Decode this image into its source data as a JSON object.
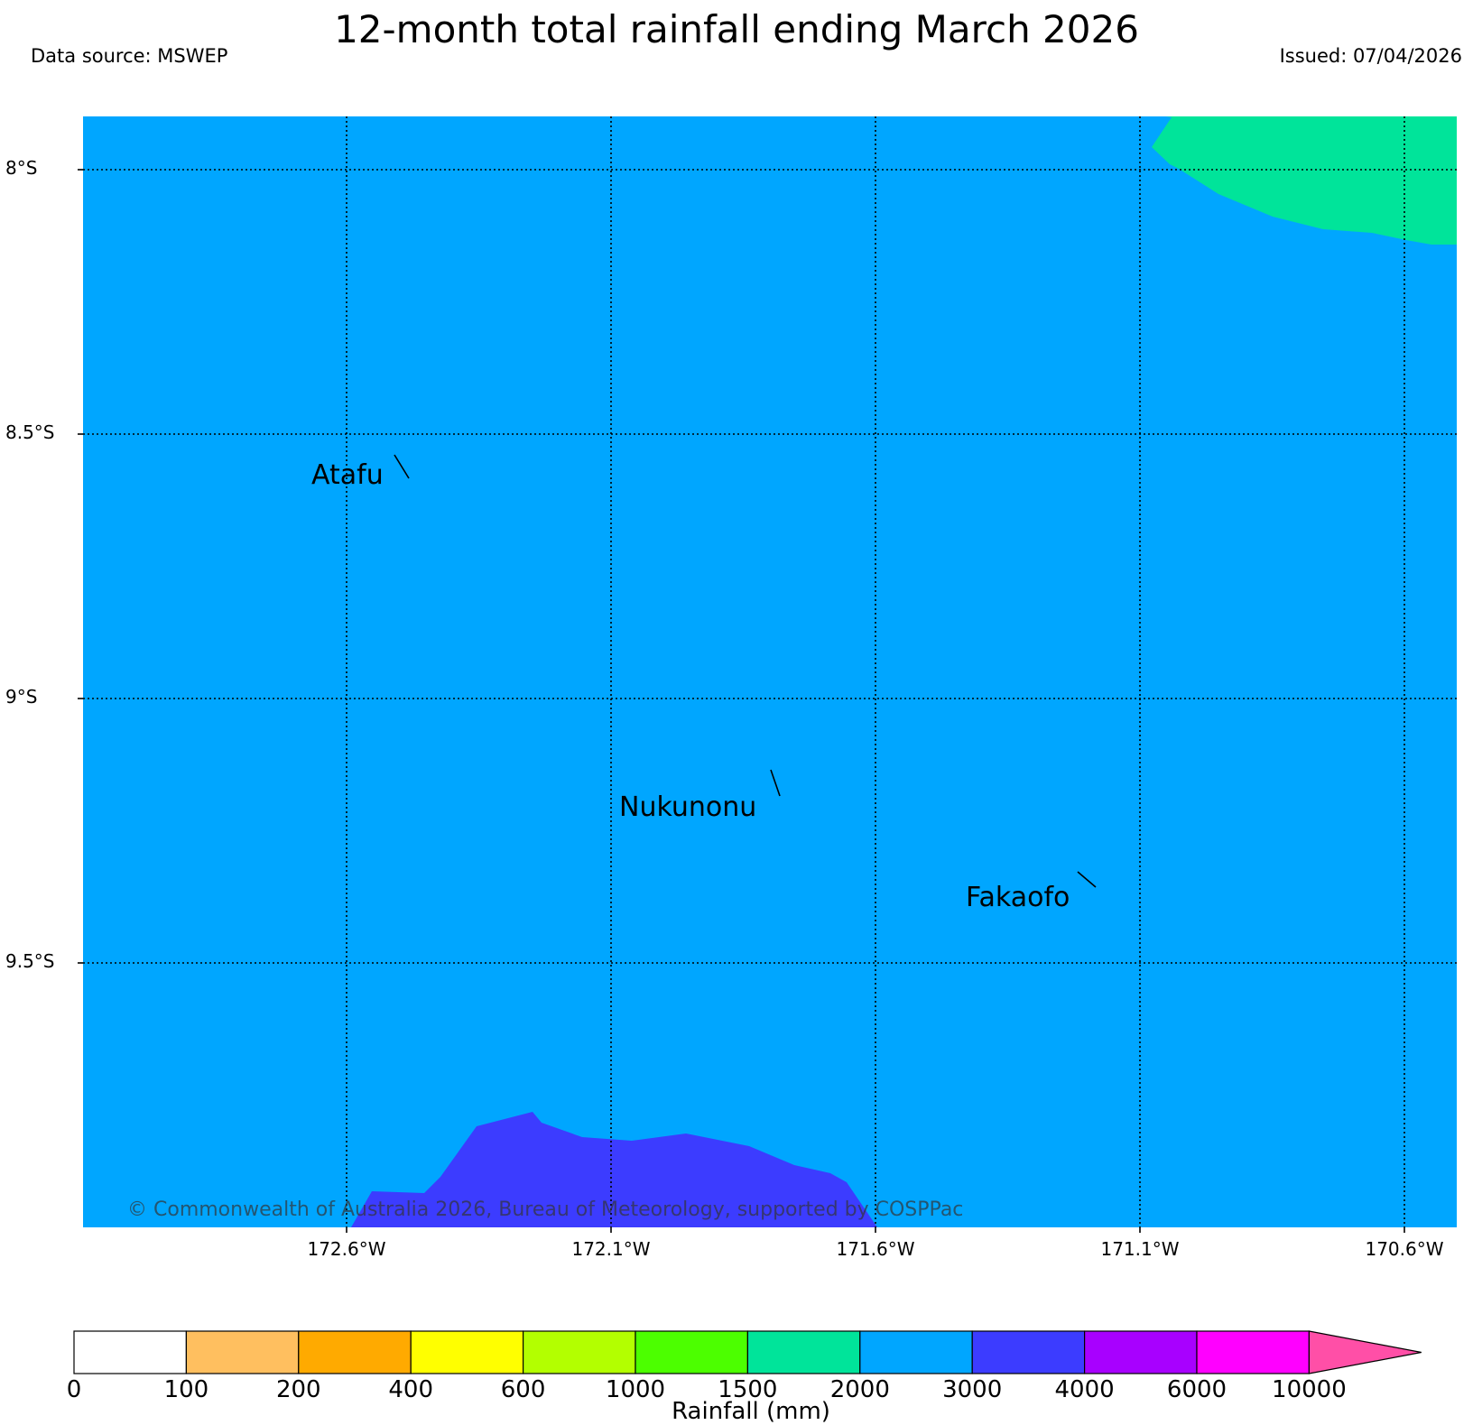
{
  "header": {
    "title": "12-month total rainfall ending March 2026",
    "data_source": "Data source: MSWEP",
    "issued": "Issued: 07/04/2026"
  },
  "map": {
    "latitude_labels": [
      "8°S",
      "8.5°S",
      "9°S",
      "9.5°S"
    ],
    "longitude_labels": [
      "172.6°W",
      "172.1°W",
      "171.6°W",
      "171.1°W",
      "170.6°W"
    ],
    "places": [
      {
        "name": "Atafu"
      },
      {
        "name": "Nukunonu"
      },
      {
        "name": "Fakaofo"
      }
    ],
    "regions": [
      {
        "name": "1500–2000 mm zone",
        "color": "#00e49a"
      },
      {
        "name": "2000–3000 mm zone",
        "color": "#00a6ff"
      },
      {
        "name": "3000–4000 mm zone",
        "color": "#3c3cff"
      }
    ],
    "copyright": "© Commonwealth of Australia 2026, Bureau of Meteorology, supported by COSPPac"
  },
  "colorbar": {
    "title": "Rainfall (mm)",
    "ticks": [
      "0",
      "100",
      "200",
      "400",
      "600",
      "1000",
      "1500",
      "2000",
      "3000",
      "4000",
      "6000",
      "10000"
    ],
    "colors": [
      "#ffffff",
      "#ffbf5f",
      "#ffaa00",
      "#ffff00",
      "#b3ff00",
      "#4cff00",
      "#00e49a",
      "#00a6ff",
      "#3c3cff",
      "#a800ff",
      "#ff00ff",
      "#ff4fa7"
    ]
  }
}
